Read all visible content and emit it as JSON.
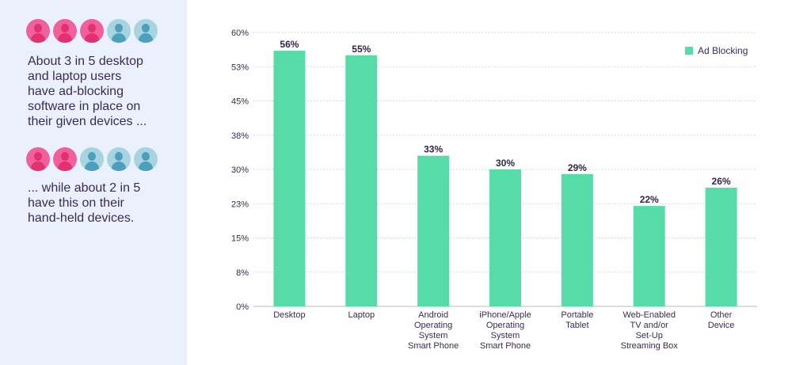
{
  "sidebar": {
    "row1_icons": [
      {
        "icon": "person-icon",
        "color": "#f0609c",
        "highlighted": true
      },
      {
        "icon": "person-icon",
        "color": "#f0609c",
        "highlighted": true
      },
      {
        "icon": "person-icon",
        "color": "#f0609c",
        "highlighted": true
      },
      {
        "icon": "person-icon",
        "color": "#a6d4e1",
        "highlighted": false
      },
      {
        "icon": "person-icon",
        "color": "#a6d4e1",
        "highlighted": false
      }
    ],
    "text1": "About 3 in 5 desktop\nand laptop users\nhave ad-blocking\nsoftware in place on\ntheir given devices ...",
    "row2_icons": [
      {
        "icon": "person-icon",
        "color": "#f0609c",
        "highlighted": true
      },
      {
        "icon": "person-icon",
        "color": "#f0609c",
        "highlighted": true
      },
      {
        "icon": "person-icon",
        "color": "#a6d4e1",
        "highlighted": false
      },
      {
        "icon": "person-icon",
        "color": "#a6d4e1",
        "highlighted": false
      },
      {
        "icon": "person-icon",
        "color": "#a6d4e1",
        "highlighted": false
      }
    ],
    "text2": "... while about 2 in 5\nhave this on their\nhand-held devices."
  },
  "chart_data": {
    "type": "bar",
    "title": "",
    "xlabel": "",
    "ylabel": "",
    "categories": [
      "Desktop",
      "Laptop",
      "Android\nOperating\nSystem\nSmart Phone",
      "iPhone/Apple\nOperating\nSystem\nSmart Phone",
      "Portable\nTablet",
      "Web-Enabled\nTV and/or\nSet-Up\nStreaming Box",
      "Other\nDevice"
    ],
    "series": [
      {
        "name": "Ad Blocking",
        "values": [
          56,
          55,
          33,
          30,
          29,
          22,
          26
        ],
        "labels": [
          "56%",
          "55%",
          "33%",
          "30%",
          "29%",
          "22%",
          "26%"
        ],
        "color": "#57dba8"
      }
    ],
    "yticks": [
      "0%",
      "8%",
      "15%",
      "23%",
      "30%",
      "38%",
      "45%",
      "53%",
      "60%"
    ],
    "ylim": [
      0,
      60
    ],
    "grid": "dotted horizontal",
    "legend": "top-right"
  }
}
